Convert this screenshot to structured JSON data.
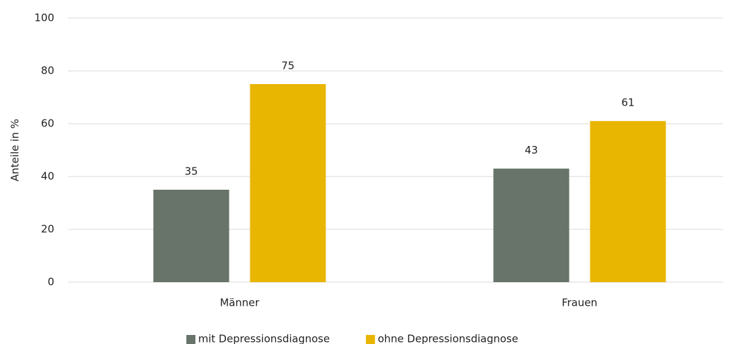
{
  "chart_data": {
    "type": "bar",
    "y_label": "Anteile in %",
    "categories": [
      "Männer",
      "Frauen"
    ],
    "series": [
      {
        "name": "mit Depressionsdiagnose",
        "color": "#68746a",
        "values": [
          35,
          43
        ]
      },
      {
        "name": "ohne Depressionsdiagnose",
        "color": "#e8b500",
        "values": [
          75,
          61
        ]
      }
    ],
    "ylim": [
      0,
      100
    ],
    "yticks": [
      0,
      20,
      40,
      60,
      80,
      100
    ],
    "grid": true,
    "legend": "bottom"
  }
}
